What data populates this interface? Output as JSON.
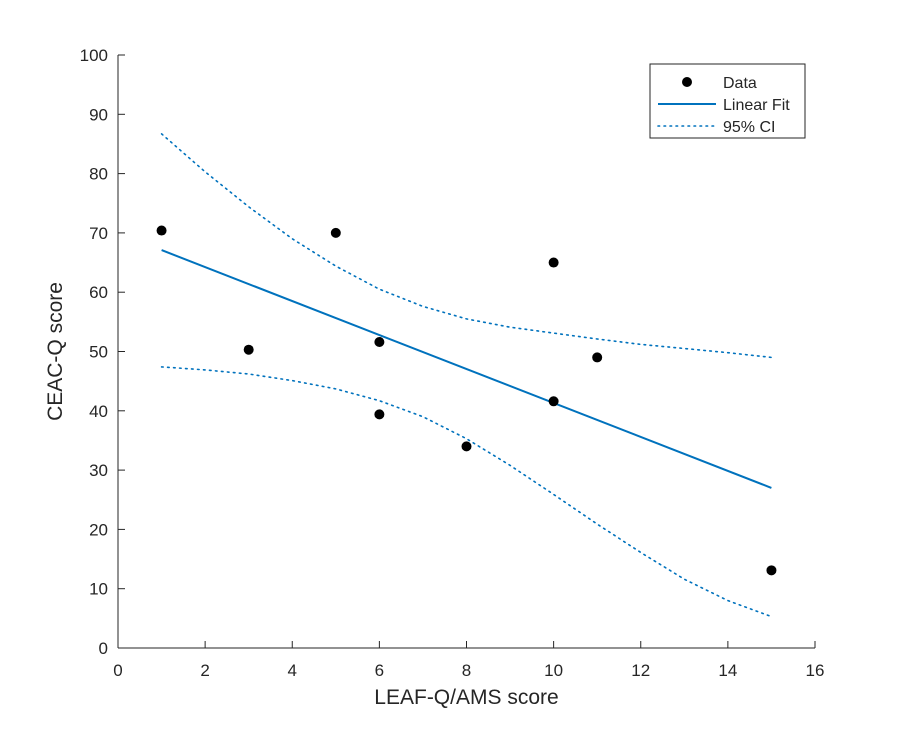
{
  "chart_data": {
    "type": "scatter",
    "title": "",
    "xlabel": "LEAF-Q/AMS score",
    "ylabel": "CEAC-Q score",
    "xlim": [
      0,
      16
    ],
    "ylim": [
      0,
      100
    ],
    "xticks": [
      0,
      2,
      4,
      6,
      8,
      10,
      12,
      14,
      16
    ],
    "yticks": [
      0,
      10,
      20,
      30,
      40,
      50,
      60,
      70,
      80,
      90,
      100
    ],
    "grid": false,
    "legend_position": "top-right",
    "series": [
      {
        "name": "Data",
        "kind": "points",
        "color": "#000000",
        "points": [
          [
            1,
            70.4
          ],
          [
            3,
            50.3
          ],
          [
            5,
            70.0
          ],
          [
            6,
            51.6
          ],
          [
            6,
            39.4
          ],
          [
            8,
            34.0
          ],
          [
            10,
            65.0
          ],
          [
            10,
            41.6
          ],
          [
            11,
            49.0
          ],
          [
            15,
            13.1
          ]
        ]
      },
      {
        "name": "Linear Fit",
        "kind": "line",
        "color": "#0072BD",
        "points": [
          [
            1,
            67.1
          ],
          [
            15,
            27.0
          ]
        ]
      },
      {
        "name": "95% CI",
        "kind": "dotted",
        "color": "#0072BD",
        "upper": [
          [
            1,
            86.7
          ],
          [
            2,
            80.3
          ],
          [
            3,
            74.4
          ],
          [
            4,
            69.0
          ],
          [
            5,
            64.4
          ],
          [
            6,
            60.5
          ],
          [
            7,
            57.6
          ],
          [
            8,
            55.5
          ],
          [
            9,
            54.1
          ],
          [
            10,
            53.1
          ],
          [
            11,
            52.1
          ],
          [
            12,
            51.2
          ],
          [
            13,
            50.5
          ],
          [
            14,
            49.8
          ],
          [
            15,
            49.0
          ]
        ],
        "lower": [
          [
            1,
            47.4
          ],
          [
            2,
            46.9
          ],
          [
            3,
            46.2
          ],
          [
            4,
            45.1
          ],
          [
            5,
            43.7
          ],
          [
            6,
            41.7
          ],
          [
            7,
            39.0
          ],
          [
            8,
            35.3
          ],
          [
            9,
            30.8
          ],
          [
            10,
            25.9
          ],
          [
            11,
            20.9
          ],
          [
            12,
            16.1
          ],
          [
            13,
            11.6
          ],
          [
            14,
            8.0
          ],
          [
            15,
            5.3
          ]
        ]
      }
    ]
  }
}
